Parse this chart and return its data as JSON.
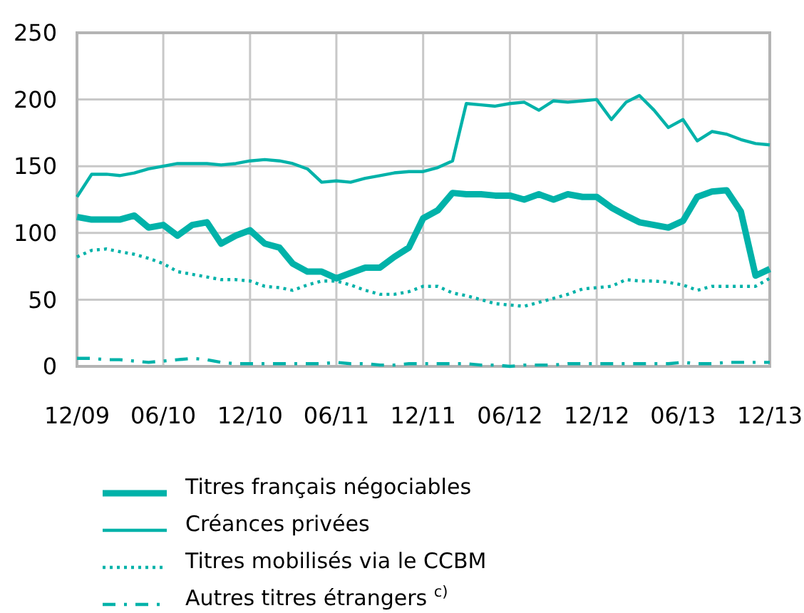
{
  "chart_data": {
    "type": "line",
    "x": [
      "2009-12",
      "2010-01",
      "2010-02",
      "2010-03",
      "2010-04",
      "2010-05",
      "2010-06",
      "2010-07",
      "2010-08",
      "2010-09",
      "2010-10",
      "2010-11",
      "2010-12",
      "2011-01",
      "2011-02",
      "2011-03",
      "2011-04",
      "2011-05",
      "2011-06",
      "2011-07",
      "2011-08",
      "2011-09",
      "2011-10",
      "2011-11",
      "2011-12",
      "2012-01",
      "2012-02",
      "2012-03",
      "2012-04",
      "2012-05",
      "2012-06",
      "2012-07",
      "2012-08",
      "2012-09",
      "2012-10",
      "2012-11",
      "2012-12",
      "2013-01",
      "2013-02",
      "2013-03",
      "2013-04",
      "2013-05",
      "2013-06",
      "2013-07",
      "2013-08",
      "2013-09",
      "2013-10",
      "2013-11",
      "2013-12"
    ],
    "series": [
      {
        "name": "Titres français négociables",
        "color": "#00b2a9",
        "line_style": "solid",
        "values": [
          112,
          110,
          110,
          110,
          113,
          104,
          106,
          98,
          106,
          108,
          92,
          98,
          102,
          92,
          89,
          77,
          71,
          71,
          66,
          70,
          74,
          74,
          82,
          89,
          111,
          117,
          130,
          129,
          129,
          128,
          128,
          125,
          129,
          125,
          129,
          127,
          127,
          119,
          113,
          108,
          106,
          104,
          109,
          127,
          131,
          132,
          116,
          68,
          73
        ]
      },
      {
        "name": "Créances privées",
        "color": "#00b2a9",
        "line_style": "solid",
        "values": [
          127,
          144,
          144,
          143,
          145,
          148,
          150,
          152,
          152,
          152,
          151,
          152,
          154,
          155,
          154,
          152,
          148,
          138,
          139,
          138,
          141,
          143,
          145,
          146,
          146,
          149,
          154,
          197,
          196,
          195,
          197,
          198,
          192,
          199,
          198,
          199,
          200,
          185,
          198,
          203,
          192,
          179,
          185,
          169,
          176,
          174,
          170,
          167,
          166
        ]
      },
      {
        "name": "Titres mobilisés via le CCBM",
        "color": "#00b2a9",
        "line_style": "dotted",
        "values": [
          82,
          87,
          88,
          86,
          84,
          81,
          77,
          71,
          69,
          67,
          65,
          65,
          64,
          60,
          59,
          57,
          61,
          64,
          64,
          61,
          57,
          54,
          54,
          56,
          60,
          60,
          55,
          53,
          50,
          47,
          46,
          45,
          48,
          51,
          54,
          58,
          59,
          60,
          65,
          64,
          64,
          63,
          61,
          57,
          60,
          60,
          60,
          60,
          66
        ]
      },
      {
        "name": "Autres titres étrangers $^{c)}$",
        "color": "#00b2a9",
        "line_style": "dashdot",
        "values": [
          6,
          6,
          5,
          5,
          4,
          3,
          4,
          5,
          6,
          5,
          3,
          2,
          2,
          2,
          2,
          2,
          2,
          2,
          3,
          2,
          2,
          1,
          1,
          2,
          2,
          2,
          2,
          2,
          1,
          1,
          0,
          1,
          1,
          1,
          2,
          2,
          2,
          2,
          2,
          2,
          2,
          2,
          3,
          2,
          2,
          3,
          3,
          3,
          3
        ]
      }
    ],
    "xlim": [
      "2009-12",
      "2013-12"
    ],
    "xticks": [
      {
        "value": "2009-12",
        "label": "12/09"
      },
      {
        "value": "2010-06",
        "label": "06/10"
      },
      {
        "value": "2010-12",
        "label": "12/10"
      },
      {
        "value": "2011-06",
        "label": "06/11"
      },
      {
        "value": "2011-12",
        "label": "12/11"
      },
      {
        "value": "2012-06",
        "label": "06/12"
      },
      {
        "value": "2012-12",
        "label": "12/12"
      },
      {
        "value": "2013-06",
        "label": "06/13"
      },
      {
        "value": "2013-12",
        "label": "12/13"
      }
    ],
    "ylim": [
      0,
      250
    ],
    "yticks": [
      0,
      50,
      100,
      150,
      200,
      250
    ],
    "grid": true,
    "legend": "bottom",
    "marker": "none"
  }
}
